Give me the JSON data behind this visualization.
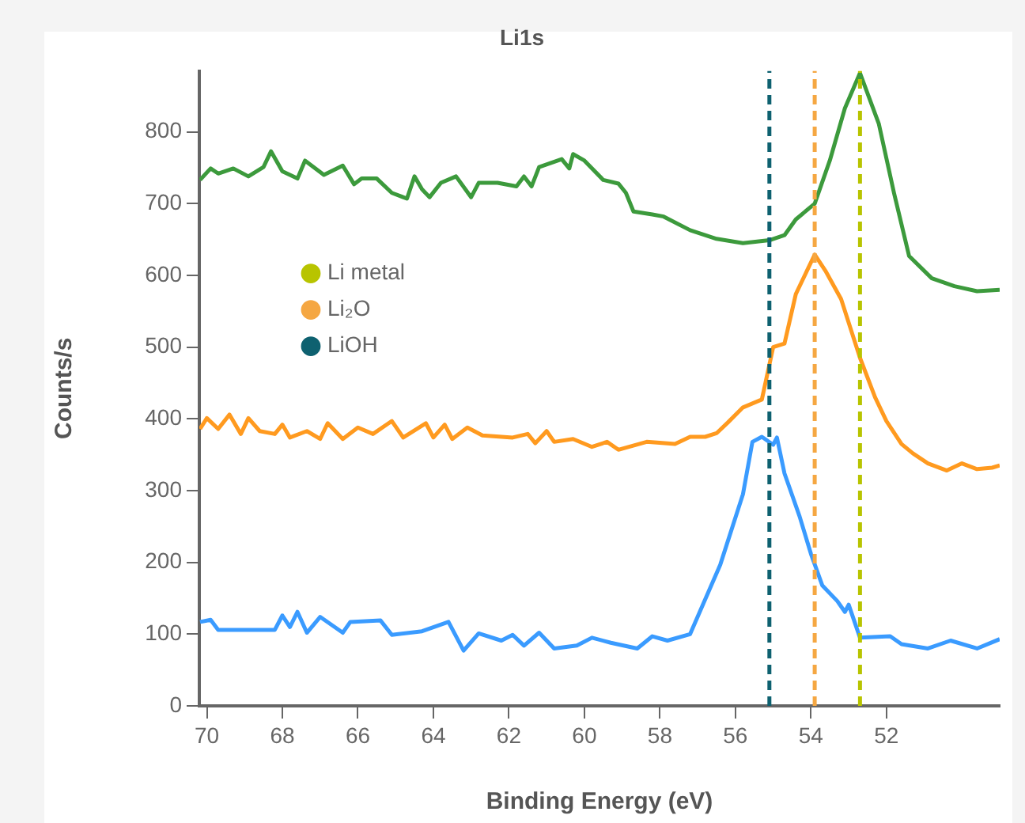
{
  "chart_data": {
    "type": "line",
    "title": "Li1s",
    "xlabel": "Binding Energy (eV)",
    "ylabel": "Counts/s",
    "xlim": [
      70.2,
      49
    ],
    "xticks": [
      70,
      68,
      66,
      64,
      62,
      60,
      58,
      56,
      54,
      52
    ],
    "ylim": [
      0,
      885
    ],
    "yticks": [
      0,
      100,
      200,
      300,
      400,
      500,
      600,
      700,
      800
    ],
    "grid": false,
    "legend": "left",
    "line_style": "solid",
    "series": [
      {
        "color": "#3c9a3c",
        "x": [
          70.18,
          69.9,
          69.7,
          69.3,
          68.9,
          68.5,
          68.3,
          68.0,
          67.6,
          67.4,
          66.9,
          66.4,
          66.1,
          65.9,
          65.5,
          65.1,
          64.7,
          64.5,
          64.3,
          64.1,
          63.8,
          63.4,
          63.0,
          62.8,
          62.3,
          61.8,
          61.6,
          61.4,
          61.2,
          60.6,
          60.4,
          60.3,
          60.0,
          59.5,
          59.1,
          58.9,
          58.7,
          58.2,
          57.9,
          57.2,
          56.5,
          55.8,
          55.1,
          54.7,
          54.4,
          53.9,
          53.5,
          53.1,
          52.7,
          52.2,
          51.8,
          51.4,
          50.8,
          50.2,
          49.6,
          49.0
        ],
        "values": [
          733,
          749,
          742,
          749,
          738,
          751,
          773,
          745,
          735,
          760,
          740,
          753,
          727,
          735,
          735,
          715,
          707,
          738,
          720,
          709,
          729,
          738,
          709,
          729,
          729,
          724,
          738,
          724,
          751,
          762,
          749,
          769,
          760,
          733,
          728,
          715,
          689,
          685,
          682,
          663,
          651,
          645,
          649,
          656,
          678,
          700,
          760,
          833,
          882,
          811,
          715,
          627,
          596,
          585,
          578,
          580
        ]
      },
      {
        "color": "#ff9a1f",
        "x": [
          70.18,
          70.0,
          69.7,
          69.4,
          69.1,
          68.9,
          68.6,
          68.2,
          68.0,
          67.8,
          67.35,
          67.0,
          66.8,
          66.4,
          66.0,
          65.6,
          65.1,
          64.8,
          64.2,
          64.0,
          63.7,
          63.5,
          63.1,
          62.7,
          61.9,
          61.5,
          61.3,
          61.0,
          60.8,
          60.3,
          59.8,
          59.4,
          59.1,
          58.35,
          57.6,
          57.2,
          56.8,
          56.5,
          56.2,
          55.8,
          55.3,
          55.0,
          54.7,
          54.4,
          53.9,
          53.6,
          53.2,
          52.7,
          52.3,
          52.0,
          51.6,
          51.3,
          50.9,
          50.4,
          50.0,
          49.6,
          49.2,
          49.0
        ],
        "values": [
          386,
          401,
          386,
          406,
          379,
          401,
          383,
          379,
          392,
          374,
          383,
          372,
          394,
          372,
          388,
          379,
          397,
          374,
          394,
          374,
          392,
          372,
          388,
          377,
          374,
          379,
          366,
          383,
          368,
          372,
          361,
          368,
          357,
          368,
          365,
          375,
          375,
          380,
          395,
          416,
          427,
          500,
          505,
          574,
          629,
          605,
          567,
          485,
          430,
          397,
          365,
          352,
          338,
          328,
          338,
          330,
          332,
          335
        ]
      },
      {
        "name": "Li metal",
        "color": "#b8c400",
        "line_style": "dashed",
        "x": [
          52.7,
          52.7
        ],
        "values": [
          0,
          885
        ]
      },
      {
        "name": "Li₂O",
        "color": "#f5a742",
        "line_style": "dashed",
        "x": [
          53.9,
          53.9
        ],
        "values": [
          0,
          885
        ]
      },
      {
        "name": "LiOH",
        "color": "#0e6170",
        "line_style": "dashed",
        "x": [
          55.1,
          55.1
        ],
        "values": [
          0,
          885
        ]
      },
      {
        "color": "#3a9bff",
        "x": [
          70.18,
          69.9,
          69.7,
          69.1,
          68.2,
          68.0,
          67.8,
          67.6,
          67.35,
          67.0,
          66.4,
          66.2,
          65.4,
          65.1,
          64.3,
          63.6,
          63.2,
          62.8,
          62.2,
          61.9,
          61.6,
          61.2,
          60.8,
          60.2,
          59.8,
          59.3,
          58.6,
          58.2,
          57.8,
          57.2,
          56.4,
          55.8,
          55.55,
          55.3,
          55.0,
          54.9,
          54.7,
          54.3,
          54.0,
          53.7,
          53.3,
          53.1,
          53.0,
          52.7,
          51.9,
          51.6,
          50.9,
          50.3,
          49.6,
          49.0
        ],
        "values": [
          117,
          120,
          106,
          106,
          106,
          126,
          110,
          131,
          102,
          124,
          102,
          117,
          119,
          99,
          104,
          117,
          77,
          101,
          91,
          99,
          84,
          102,
          80,
          84,
          95,
          88,
          80,
          97,
          91,
          100,
          197,
          295,
          368,
          375,
          364,
          374,
          324,
          264,
          212,
          168,
          146,
          131,
          141,
          95,
          97,
          86,
          80,
          91,
          80,
          93
        ]
      }
    ]
  }
}
